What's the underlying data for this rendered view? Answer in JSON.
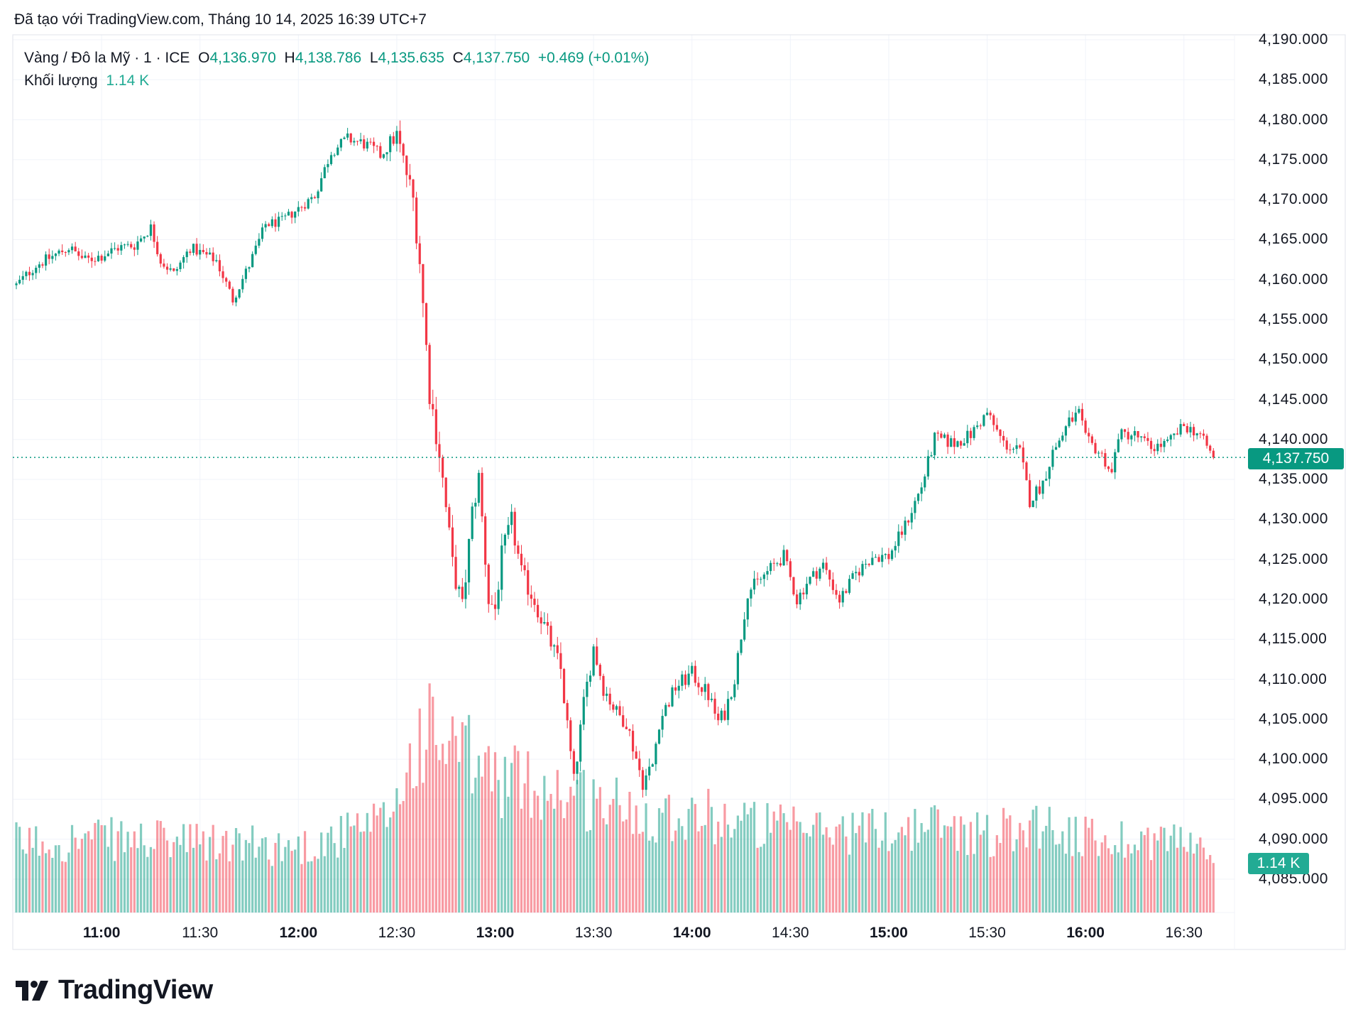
{
  "header": {
    "title": "Đã tạo với TradingView.com, Tháng 10 14, 2025 16:39 UTC+7"
  },
  "legend": {
    "symbol": "Vàng / Đô la Mỹ · 1 · ICE",
    "o_label": "O",
    "o_value": "4,136.970",
    "h_label": "H",
    "h_value": "4,138.786",
    "l_label": "L",
    "l_value": "4,135.635",
    "c_label": "C",
    "c_value": "4,137.750",
    "change": "+0.469 (+0.01%)",
    "volume_label": "Khối lượng",
    "volume_value": "1.14 K"
  },
  "price_tag": "4,137.750",
  "volume_tag": "1.14 K",
  "logo_text": "TradingView",
  "colors": {
    "up": "#089981",
    "down": "#F23645",
    "grid": "#f0f3fa"
  },
  "chart_data": {
    "type": "candlestick",
    "interval_minutes": 1,
    "start": "10:34",
    "end": "16:39",
    "ylim": [
      4080,
      4192
    ],
    "y_ticks": [
      "4,190.000",
      "4,185.000",
      "4,180.000",
      "4,175.000",
      "4,170.000",
      "4,165.000",
      "4,160.000",
      "4,155.000",
      "4,150.000",
      "4,145.000",
      "4,140.000",
      "4,135.000",
      "4,130.000",
      "4,125.000",
      "4,120.000",
      "4,115.000",
      "4,110.000",
      "4,105.000",
      "4,100.000",
      "4,095.000",
      "4,090.000",
      "4,085.000"
    ],
    "x_ticks": [
      {
        "label": "11:00",
        "bold": true
      },
      {
        "label": "11:30",
        "bold": false
      },
      {
        "label": "12:00",
        "bold": true
      },
      {
        "label": "12:30",
        "bold": false
      },
      {
        "label": "13:00",
        "bold": true
      },
      {
        "label": "13:30",
        "bold": false
      },
      {
        "label": "14:00",
        "bold": true
      },
      {
        "label": "14:30",
        "bold": false
      },
      {
        "label": "15:00",
        "bold": true
      },
      {
        "label": "15:30",
        "bold": false
      },
      {
        "label": "16:00",
        "bold": true
      },
      {
        "label": "16:30",
        "bold": false
      }
    ],
    "last_price": 4137.75,
    "close_anchors": [
      [
        "10:34",
        4159.3
      ],
      [
        "10:40",
        4161.8
      ],
      [
        "10:50",
        4164.0
      ],
      [
        "10:55",
        4162.4
      ],
      [
        "11:00",
        4163.0
      ],
      [
        "11:05",
        4164.0
      ],
      [
        "11:10",
        4164.3
      ],
      [
        "11:15",
        4166.5
      ],
      [
        "11:18",
        4162.4
      ],
      [
        "11:22",
        4160.7
      ],
      [
        "11:27",
        4164.0
      ],
      [
        "11:30",
        4163.4
      ],
      [
        "11:35",
        4162.4
      ],
      [
        "11:40",
        4157.5
      ],
      [
        "11:45",
        4161.8
      ],
      [
        "11:50",
        4166.9
      ],
      [
        "11:55",
        4167.3
      ],
      [
        "12:00",
        4168.9
      ],
      [
        "12:05",
        4170.5
      ],
      [
        "12:10",
        4176.0
      ],
      [
        "12:15",
        4177.6
      ],
      [
        "12:20",
        4177.0
      ],
      [
        "12:25",
        4175.6
      ],
      [
        "12:30",
        4178.1
      ],
      [
        "12:35",
        4170.0
      ],
      [
        "12:37",
        4162.4
      ],
      [
        "12:40",
        4146.0
      ],
      [
        "12:43",
        4138.4
      ],
      [
        "12:47",
        4124.3
      ],
      [
        "12:50",
        4118.8
      ],
      [
        "12:53",
        4130.8
      ],
      [
        "12:55",
        4135.2
      ],
      [
        "12:58",
        4119.9
      ],
      [
        "13:00",
        4118.8
      ],
      [
        "13:02",
        4125.4
      ],
      [
        "13:05",
        4129.7
      ],
      [
        "13:08",
        4123.2
      ],
      [
        "13:12",
        4119.9
      ],
      [
        "13:17",
        4114.5
      ],
      [
        "13:20",
        4111.2
      ],
      [
        "13:24",
        4097.1
      ],
      [
        "13:27",
        4106.9
      ],
      [
        "13:30",
        4114.0
      ],
      [
        "13:33",
        4109.0
      ],
      [
        "13:37",
        4105.8
      ],
      [
        "13:40",
        4104.7
      ],
      [
        "13:45",
        4097.1
      ],
      [
        "13:48",
        4099.3
      ],
      [
        "13:50",
        4104.7
      ],
      [
        "13:55",
        4109.0
      ],
      [
        "14:00",
        4110.7
      ],
      [
        "14:05",
        4108.0
      ],
      [
        "14:08",
        4104.7
      ],
      [
        "14:10",
        4105.8
      ],
      [
        "14:13",
        4110.1
      ],
      [
        "14:17",
        4121.0
      ],
      [
        "14:20",
        4122.1
      ],
      [
        "14:25",
        4124.3
      ],
      [
        "14:28",
        4125.4
      ],
      [
        "14:32",
        4119.9
      ],
      [
        "14:35",
        4122.1
      ],
      [
        "14:40",
        4124.3
      ],
      [
        "14:45",
        4119.9
      ],
      [
        "14:50",
        4123.2
      ],
      [
        "14:55",
        4125.4
      ],
      [
        "15:00",
        4125.4
      ],
      [
        "15:05",
        4129.2
      ],
      [
        "15:10",
        4134.1
      ],
      [
        "15:14",
        4140.1
      ],
      [
        "15:20",
        4139.5
      ],
      [
        "15:25",
        4140.6
      ],
      [
        "15:30",
        4143.3
      ],
      [
        "15:35",
        4139.5
      ],
      [
        "15:40",
        4138.4
      ],
      [
        "15:43",
        4132.4
      ],
      [
        "15:47",
        4134.6
      ],
      [
        "15:50",
        4138.4
      ],
      [
        "15:55",
        4142.2
      ],
      [
        "15:58",
        4143.3
      ],
      [
        "16:00",
        4140.1
      ],
      [
        "16:05",
        4138.0
      ],
      [
        "16:08",
        4135.7
      ],
      [
        "16:10",
        4140.6
      ],
      [
        "16:15",
        4140.6
      ],
      [
        "16:20",
        4139.0
      ],
      [
        "16:25",
        4139.5
      ],
      [
        "16:30",
        4141.7
      ],
      [
        "16:35",
        4140.6
      ],
      [
        "16:39",
        4137.75
      ]
    ],
    "volume_unit": "K",
    "volume_anchors": [
      [
        "10:34",
        1.6
      ],
      [
        "11:00",
        1.7
      ],
      [
        "11:30",
        1.6
      ],
      [
        "12:00",
        1.5
      ],
      [
        "12:25",
        2.0
      ],
      [
        "12:30",
        2.6
      ],
      [
        "12:38",
        4.2
      ],
      [
        "12:50",
        3.6
      ],
      [
        "13:00",
        3.1
      ],
      [
        "13:15",
        2.9
      ],
      [
        "13:30",
        2.6
      ],
      [
        "13:45",
        2.3
      ],
      [
        "14:00",
        2.3
      ],
      [
        "14:15",
        2.1
      ],
      [
        "14:30",
        1.9
      ],
      [
        "15:00",
        1.9
      ],
      [
        "15:15",
        2.0
      ],
      [
        "15:30",
        1.8
      ],
      [
        "15:45",
        2.1
      ],
      [
        "16:00",
        1.7
      ],
      [
        "16:30",
        1.7
      ],
      [
        "16:39",
        1.14
      ]
    ]
  }
}
